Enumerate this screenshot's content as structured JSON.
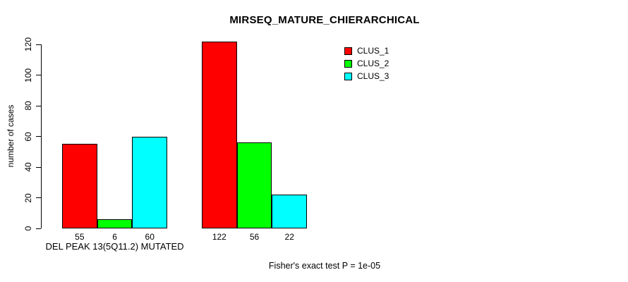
{
  "page": {
    "background": "#ffffff",
    "text_color": "#000000"
  },
  "chart_data": {
    "type": "bar",
    "title": "MIRSEQ_MATURE_CHIERARCHICAL",
    "ylabel": "number of cases",
    "xlabel": "",
    "ylim": [
      0,
      120
    ],
    "yticks": [
      0,
      20,
      40,
      60,
      80,
      100,
      120
    ],
    "grid": false,
    "series": [
      {
        "name": "CLUS_1",
        "color": "#ff0000"
      },
      {
        "name": "CLUS_2",
        "color": "#00ff00"
      },
      {
        "name": "CLUS_3",
        "color": "#00ffff"
      }
    ],
    "groups": [
      {
        "label": "DEL PEAK 13(5Q11.2) MUTATED",
        "values": [
          55,
          6,
          60
        ]
      },
      {
        "label": "",
        "values": [
          122,
          56,
          22
        ]
      }
    ],
    "bar_value_labels": [
      55,
      6,
      60,
      122,
      56,
      22
    ],
    "legend_position": "top-right",
    "annotation": "Fisher's exact test P = 1e-05"
  }
}
